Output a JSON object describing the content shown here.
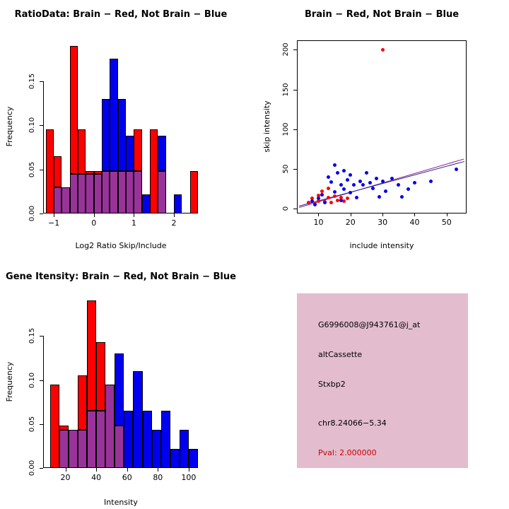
{
  "colors": {
    "red": "#FF0000",
    "blue": "#0000EE",
    "purple": "#993399",
    "axis": "#000000"
  },
  "chart_data": [
    {
      "id": "ratio_hist",
      "type": "histogram_overlay",
      "title": "RatioData: Brain − Red, Not Brain − Blue",
      "xlabel": "Log2 Ratio Skip/Include",
      "ylabel": "Frequency",
      "legend": {
        "Brain": "red",
        "Not Brain": "blue",
        "overlap": "purple"
      },
      "xlim": [
        -1.25,
        2.6
      ],
      "ylim": [
        0,
        0.196
      ],
      "x_ticks": [
        -1,
        0,
        1,
        2
      ],
      "y_ticks": [
        0,
        0.05,
        0.1,
        0.15
      ],
      "y_tick_labels": [
        "0.00",
        "0.05",
        "0.10",
        "0.15"
      ],
      "bin_width": 0.2,
      "bins": [
        -1.2,
        -1.0,
        -0.8,
        -0.6,
        -0.4,
        -0.2,
        0.0,
        0.2,
        0.4,
        0.6,
        0.8,
        1.0,
        1.2,
        1.4,
        1.6,
        1.8,
        2.0,
        2.2,
        2.4
      ],
      "series": [
        {
          "name": "Brain",
          "color_key": "red",
          "values": [
            0.095,
            0.065,
            0.03,
            0.19,
            0.095,
            0.048,
            0.048,
            0.048,
            0.048,
            0.048,
            0.048,
            0.095,
            0,
            0.095,
            0.048,
            0,
            0,
            0,
            0.048
          ]
        },
        {
          "name": "Not Brain",
          "color_key": "blue",
          "values": [
            0,
            0.03,
            0.03,
            0.045,
            0.045,
            0.045,
            0.045,
            0.13,
            0.175,
            0.13,
            0.088,
            0.048,
            0.022,
            0,
            0.088,
            0,
            0.022,
            0,
            0
          ]
        }
      ]
    },
    {
      "id": "intensity_scatter",
      "type": "scatter",
      "boxed": true,
      "title": "Brain − Red, Not Brain − Blue",
      "xlabel": "include intensity",
      "ylabel": "skip intensity",
      "xlim": [
        3.5,
        56
      ],
      "ylim": [
        -5,
        211
      ],
      "x_ticks": [
        10,
        20,
        30,
        40,
        50
      ],
      "y_ticks": [
        0,
        50,
        100,
        150,
        200
      ],
      "series": [
        {
          "name": "Brain",
          "color_key": "red",
          "points": [
            [
              7,
              8
            ],
            [
              8,
              13
            ],
            [
              9,
              6
            ],
            [
              10,
              10
            ],
            [
              10,
              17
            ],
            [
              11,
              22
            ],
            [
              12,
              9
            ],
            [
              13,
              14
            ],
            [
              13,
              26
            ],
            [
              14,
              8
            ],
            [
              15,
              16
            ],
            [
              16,
              11
            ],
            [
              17,
              14
            ],
            [
              18,
              10
            ],
            [
              19,
              13
            ],
            [
              30,
              200
            ]
          ]
        },
        {
          "name": "Not Brain",
          "color_key": "blue",
          "points": [
            [
              8,
              10
            ],
            [
              9,
              5
            ],
            [
              10,
              13
            ],
            [
              11,
              18
            ],
            [
              12,
              8
            ],
            [
              13,
              40
            ],
            [
              14,
              34
            ],
            [
              15,
              21
            ],
            [
              15,
              55
            ],
            [
              16,
              45
            ],
            [
              17,
              11
            ],
            [
              17,
              30
            ],
            [
              18,
              25
            ],
            [
              18,
              48
            ],
            [
              19,
              36
            ],
            [
              20,
              20
            ],
            [
              20,
              43
            ],
            [
              21,
              30
            ],
            [
              22,
              14
            ],
            [
              23,
              35
            ],
            [
              24,
              30
            ],
            [
              25,
              45
            ],
            [
              26,
              33
            ],
            [
              27,
              26
            ],
            [
              28,
              38
            ],
            [
              29,
              15
            ],
            [
              30,
              35
            ],
            [
              31,
              22
            ],
            [
              33,
              38
            ],
            [
              35,
              30
            ],
            [
              36,
              15
            ],
            [
              38,
              25
            ],
            [
              40,
              33
            ],
            [
              45,
              35
            ],
            [
              53,
              50
            ]
          ]
        }
      ],
      "lines": [
        {
          "x1": 4,
          "y1": 2,
          "x2": 55.5,
          "y2": 63,
          "color": "#8B1A8B"
        },
        {
          "x1": 4,
          "y1": 4,
          "x2": 55.5,
          "y2": 60,
          "color": "#26268B"
        }
      ]
    },
    {
      "id": "gene_hist",
      "type": "histogram_overlay",
      "title": "Gene Itensity: Brain − Red, Not Brain − Blue",
      "xlabel": "Intensity",
      "ylabel": "Frequency",
      "legend": {
        "Brain": "red",
        "Not Brain": "blue",
        "overlap": "purple"
      },
      "xlim": [
        6,
        106
      ],
      "ylim": [
        0,
        0.196
      ],
      "x_ticks": [
        20,
        40,
        60,
        80,
        100
      ],
      "y_ticks": [
        0,
        0.05,
        0.1,
        0.15
      ],
      "y_tick_labels": [
        "0.00",
        "0.05",
        "0.10",
        "0.15"
      ],
      "bin_width": 6,
      "bins": [
        10,
        16,
        22,
        28,
        34,
        40,
        46,
        52,
        58,
        64,
        70,
        76,
        82,
        88,
        94,
        100
      ],
      "series": [
        {
          "name": "Brain",
          "color_key": "red",
          "values": [
            0.095,
            0.048,
            0.043,
            0.105,
            0.19,
            0.143,
            0.095,
            0.048,
            0,
            0,
            0,
            0,
            0,
            0,
            0,
            0
          ]
        },
        {
          "name": "Not Brain",
          "color_key": "blue",
          "values": [
            0,
            0.043,
            0.043,
            0.043,
            0.065,
            0.065,
            0.095,
            0.13,
            0.065,
            0.11,
            0.065,
            0.043,
            0.065,
            0.022,
            0.043,
            0.022
          ]
        }
      ]
    }
  ],
  "info_box": {
    "bg": "#E3BCCE",
    "lines": [
      {
        "text": "G6996008@J943761@j_at",
        "color": "#000000"
      },
      {
        "text": "altCassette",
        "color": "#000000"
      },
      {
        "text": "Stxbp2",
        "color": "#000000"
      },
      {
        "text": "chr8.24066−5.34",
        "color": "#000000"
      },
      {
        "text": "Pval: 2.000000",
        "color": "#CC0000"
      }
    ]
  }
}
